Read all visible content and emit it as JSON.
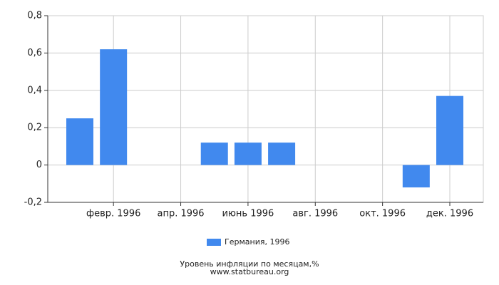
{
  "chart_data": {
    "type": "bar",
    "categories": [
      null,
      "февр. 1996",
      null,
      "апр. 1996",
      null,
      "июнь 1996",
      null,
      "авг. 1996",
      null,
      "окт. 1996",
      null,
      "дек. 1996"
    ],
    "series": [
      {
        "name": "Германия, 1996",
        "color": "#4189ee",
        "values": [
          0.25,
          0.62,
          0,
          0,
          0.12,
          0.12,
          0.12,
          0,
          0,
          0,
          -0.12,
          0.37
        ]
      }
    ],
    "ylim": [
      -0.2,
      0.8
    ],
    "yticks": [
      {
        "value": -0.2,
        "label": "-0,2"
      },
      0,
      {
        "value": 0.2,
        "label": "0,2"
      },
      {
        "value": 0.4,
        "label": "0,4"
      },
      {
        "value": 0.6,
        "label": "0,6"
      },
      {
        "value": 0.8,
        "label": "0,8"
      }
    ],
    "grid": true,
    "legend": "bottom",
    "footer": [
      "Уровень инфляции по месяцам,%",
      "www.statbureau.org"
    ]
  }
}
